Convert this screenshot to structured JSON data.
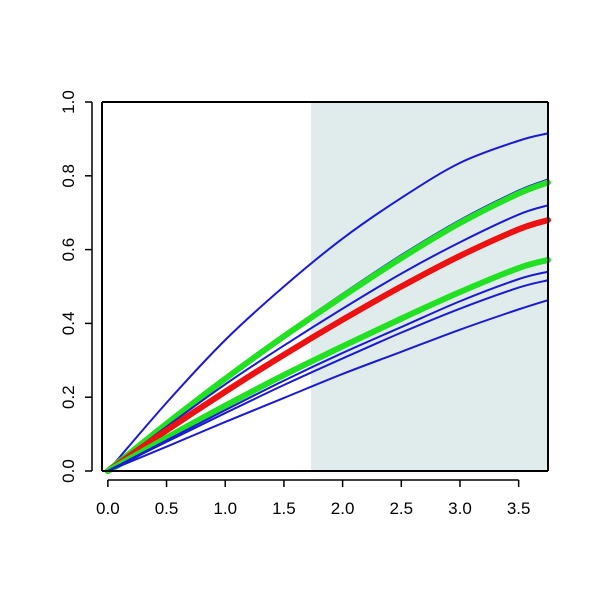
{
  "chart_data": {
    "type": "line",
    "title": "",
    "xlabel": "",
    "ylabel": "",
    "xlim": [
      -0.05,
      3.75
    ],
    "ylim": [
      0,
      1
    ],
    "x_ticks": [
      "0.0",
      "0.5",
      "1.0",
      "1.5",
      "2.0",
      "2.5",
      "3.0",
      "3.5"
    ],
    "y_ticks": [
      "0.0",
      "0.2",
      "0.4",
      "0.6",
      "0.8",
      "1.0"
    ],
    "shaded_region": {
      "x_start": 1.73,
      "x_end": 3.75,
      "color": "#e0ecec"
    },
    "grid": false,
    "legend": "none",
    "series": [
      {
        "color": "#1a1ad6",
        "weight": "thin",
        "points": [
          [
            0,
            0
          ],
          [
            0.5,
            0.185
          ],
          [
            1.0,
            0.355
          ],
          [
            1.5,
            0.5
          ],
          [
            2.0,
            0.63
          ],
          [
            2.5,
            0.74
          ],
          [
            3.0,
            0.835
          ],
          [
            3.5,
            0.895
          ],
          [
            3.75,
            0.915
          ]
        ]
      },
      {
        "color": "#1a1ad6",
        "weight": "thin",
        "points": [
          [
            0,
            0
          ],
          [
            0.5,
            0.13
          ],
          [
            1.0,
            0.255
          ],
          [
            1.5,
            0.37
          ],
          [
            2.0,
            0.48
          ],
          [
            2.5,
            0.585
          ],
          [
            3.0,
            0.68
          ],
          [
            3.5,
            0.76
          ],
          [
            3.75,
            0.79
          ]
        ]
      },
      {
        "color": "#22e022",
        "weight": "thick",
        "points": [
          [
            0,
            0
          ],
          [
            0.5,
            0.128
          ],
          [
            1.0,
            0.25
          ],
          [
            1.5,
            0.365
          ],
          [
            2.0,
            0.473
          ],
          [
            2.5,
            0.577
          ],
          [
            3.0,
            0.672
          ],
          [
            3.5,
            0.752
          ],
          [
            3.75,
            0.782
          ]
        ]
      },
      {
        "color": "#1a1ad6",
        "weight": "thin",
        "points": [
          [
            0,
            0
          ],
          [
            0.5,
            0.12
          ],
          [
            1.0,
            0.235
          ],
          [
            1.5,
            0.34
          ],
          [
            2.0,
            0.44
          ],
          [
            2.5,
            0.535
          ],
          [
            3.0,
            0.62
          ],
          [
            3.5,
            0.695
          ],
          [
            3.75,
            0.72
          ]
        ]
      },
      {
        "color": "#ee1111",
        "weight": "thick",
        "points": [
          [
            0,
            0
          ],
          [
            0.5,
            0.11
          ],
          [
            1.0,
            0.215
          ],
          [
            1.5,
            0.315
          ],
          [
            2.0,
            0.41
          ],
          [
            2.5,
            0.5
          ],
          [
            3.0,
            0.583
          ],
          [
            3.5,
            0.655
          ],
          [
            3.75,
            0.68
          ]
        ]
      },
      {
        "color": "#22e022",
        "weight": "thick",
        "points": [
          [
            0,
            0
          ],
          [
            0.5,
            0.09
          ],
          [
            1.0,
            0.177
          ],
          [
            1.5,
            0.26
          ],
          [
            2.0,
            0.338
          ],
          [
            2.5,
            0.413
          ],
          [
            3.0,
            0.485
          ],
          [
            3.5,
            0.55
          ],
          [
            3.75,
            0.572
          ]
        ]
      },
      {
        "color": "#1a1ad6",
        "weight": "thin",
        "points": [
          [
            0,
            0
          ],
          [
            0.5,
            0.083
          ],
          [
            1.0,
            0.165
          ],
          [
            1.5,
            0.245
          ],
          [
            2.0,
            0.32
          ],
          [
            2.5,
            0.39
          ],
          [
            3.0,
            0.46
          ],
          [
            3.5,
            0.52
          ],
          [
            3.75,
            0.54
          ]
        ]
      },
      {
        "color": "#1a1ad6",
        "weight": "thin",
        "points": [
          [
            0,
            0
          ],
          [
            0.5,
            0.079
          ],
          [
            1.0,
            0.157
          ],
          [
            1.5,
            0.233
          ],
          [
            2.0,
            0.305
          ],
          [
            2.5,
            0.375
          ],
          [
            3.0,
            0.44
          ],
          [
            3.5,
            0.497
          ],
          [
            3.75,
            0.517
          ]
        ]
      },
      {
        "color": "#1a1ad6",
        "weight": "thin",
        "points": [
          [
            0,
            0
          ],
          [
            0.5,
            0.066
          ],
          [
            1.0,
            0.133
          ],
          [
            1.5,
            0.198
          ],
          [
            2.0,
            0.263
          ],
          [
            2.5,
            0.323
          ],
          [
            3.0,
            0.383
          ],
          [
            3.5,
            0.438
          ],
          [
            3.75,
            0.463
          ]
        ]
      }
    ]
  }
}
